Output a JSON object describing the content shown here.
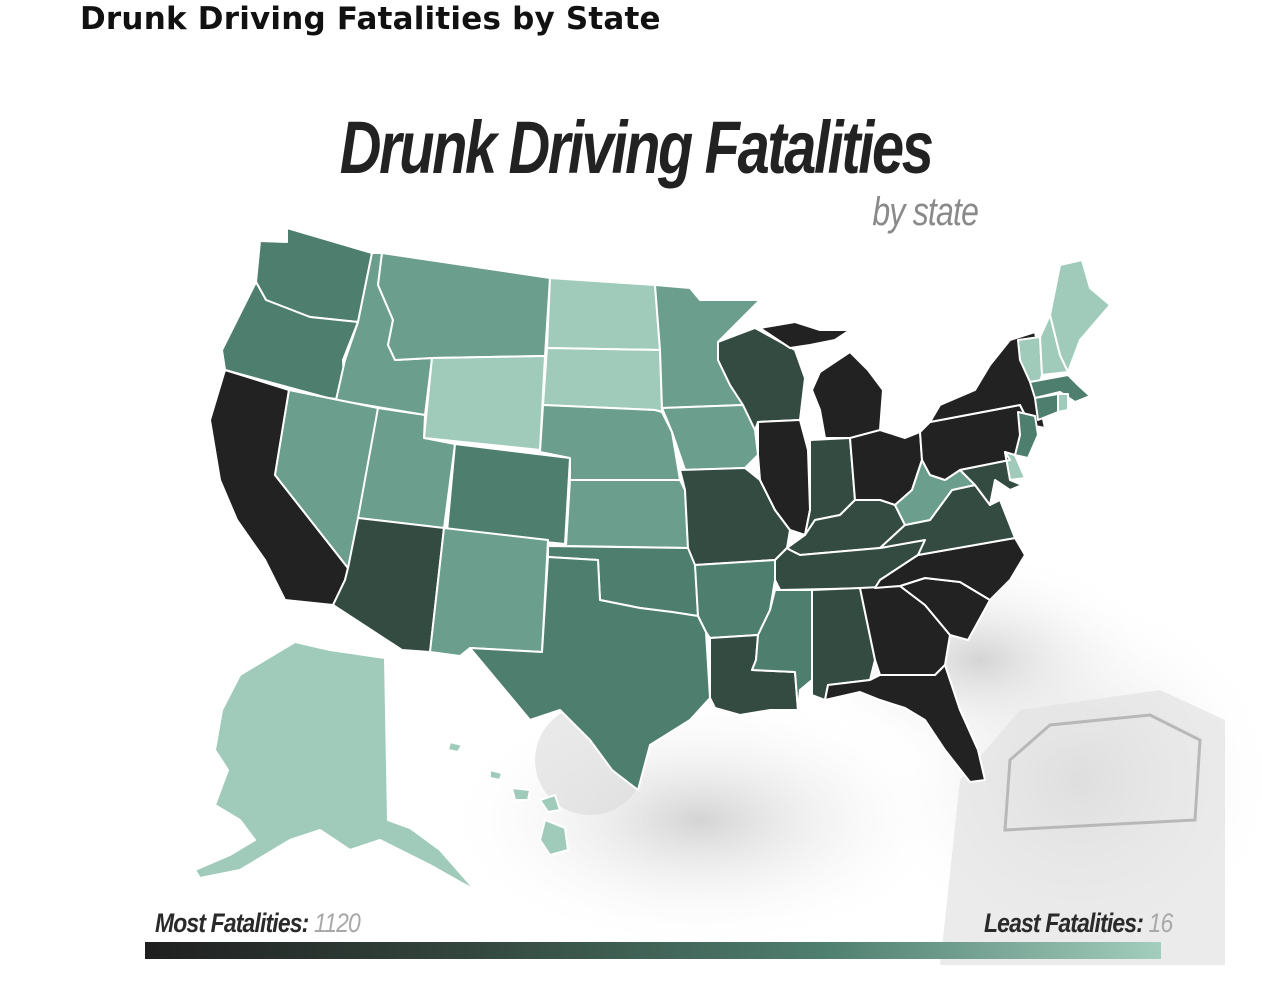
{
  "page": {
    "heading": "Drunk Driving Fatalities by State"
  },
  "figure": {
    "title": "Drunk Driving Fatalities",
    "subtitle": "by state"
  },
  "legend": {
    "most_label": "Most Fatalities:",
    "most_value": "1120",
    "least_label": "Least Fatalities:",
    "least_value": "16",
    "gradient_colors": [
      "#1f1f1f",
      "#34483f",
      "#4f7f6f",
      "#a3cdbd"
    ]
  },
  "colors": {
    "tier1": "#222222",
    "tier2": "#344b42",
    "tier3": "#4e7e6e",
    "tier4": "#6b9e8c",
    "tier5": "#a0cbbb",
    "border": "#ffffff"
  },
  "states": [
    {
      "id": "WA",
      "tier": 3
    },
    {
      "id": "OR",
      "tier": 3
    },
    {
      "id": "CA",
      "tier": 1
    },
    {
      "id": "ID",
      "tier": 4
    },
    {
      "id": "NV",
      "tier": 4
    },
    {
      "id": "MT",
      "tier": 4
    },
    {
      "id": "WY",
      "tier": 5
    },
    {
      "id": "UT",
      "tier": 4
    },
    {
      "id": "AZ",
      "tier": 2
    },
    {
      "id": "CO",
      "tier": 3
    },
    {
      "id": "NM",
      "tier": 4
    },
    {
      "id": "ND",
      "tier": 5
    },
    {
      "id": "SD",
      "tier": 5
    },
    {
      "id": "NE",
      "tier": 4
    },
    {
      "id": "KS",
      "tier": 4
    },
    {
      "id": "OK",
      "tier": 3
    },
    {
      "id": "TX",
      "tier": 3
    },
    {
      "id": "MN",
      "tier": 4
    },
    {
      "id": "IA",
      "tier": 4
    },
    {
      "id": "MO",
      "tier": 2
    },
    {
      "id": "AR",
      "tier": 3
    },
    {
      "id": "LA",
      "tier": 2
    },
    {
      "id": "WI",
      "tier": 2
    },
    {
      "id": "IL",
      "tier": 1
    },
    {
      "id": "MI",
      "tier": 1
    },
    {
      "id": "IN",
      "tier": 2
    },
    {
      "id": "OH",
      "tier": 1
    },
    {
      "id": "KY",
      "tier": 2
    },
    {
      "id": "TN",
      "tier": 2
    },
    {
      "id": "MS",
      "tier": 3
    },
    {
      "id": "AL",
      "tier": 2
    },
    {
      "id": "GA",
      "tier": 1
    },
    {
      "id": "FL",
      "tier": 1
    },
    {
      "id": "SC",
      "tier": 1
    },
    {
      "id": "NC",
      "tier": 1
    },
    {
      "id": "VA",
      "tier": 2
    },
    {
      "id": "WV",
      "tier": 4
    },
    {
      "id": "PA",
      "tier": 1
    },
    {
      "id": "NY",
      "tier": 1
    },
    {
      "id": "VT",
      "tier": 5
    },
    {
      "id": "NH",
      "tier": 5
    },
    {
      "id": "ME",
      "tier": 5
    },
    {
      "id": "MA",
      "tier": 3
    },
    {
      "id": "CT",
      "tier": 3
    },
    {
      "id": "RI",
      "tier": 5
    },
    {
      "id": "NJ",
      "tier": 3
    },
    {
      "id": "DE",
      "tier": 5
    },
    {
      "id": "MD",
      "tier": 2
    },
    {
      "id": "AK",
      "tier": 5
    },
    {
      "id": "HI",
      "tier": 5
    }
  ]
}
